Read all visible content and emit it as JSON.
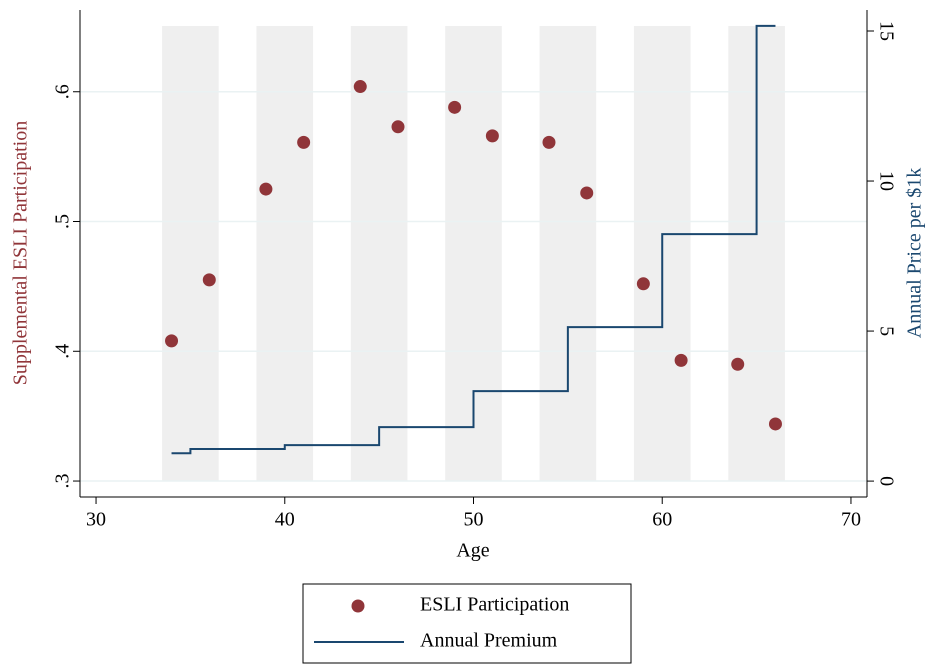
{
  "chart_data": {
    "type": "combo",
    "xlabel": "Age",
    "ylabel": "Supplemental ESLI Participation",
    "y2label": "Annual Price per $1k",
    "xlim": [
      29.15,
      70.85
    ],
    "xticks": [
      30,
      40,
      50,
      60,
      70
    ],
    "ylim": [
      0.2877,
      0.663
    ],
    "yticks": [
      {
        "value": 0.3,
        "label": ".3"
      },
      {
        "value": 0.4,
        "label": ".4"
      },
      {
        "value": 0.5,
        "label": ".5"
      },
      {
        "value": 0.6,
        "label": ".6"
      }
    ],
    "y2lim": [
      -0.53,
      15.7
    ],
    "y2ticks": [
      0,
      5,
      10,
      15
    ],
    "grid": true,
    "shaded_bands": [
      [
        33.5,
        36.5
      ],
      [
        38.5,
        41.5
      ],
      [
        43.5,
        46.5
      ],
      [
        48.5,
        51.5
      ],
      [
        53.5,
        56.5
      ],
      [
        58.5,
        61.5
      ],
      [
        63.5,
        66.5
      ]
    ],
    "band_color": "#efefef",
    "legend": "bottom",
    "series": [
      {
        "name": "ESLI Participation",
        "type": "scatter",
        "color": "#903539",
        "x": [
          34,
          36,
          39,
          41,
          44,
          46,
          49,
          51,
          54,
          56,
          59,
          61,
          64,
          66
        ],
        "values": [
          0.408,
          0.455,
          0.525,
          0.561,
          0.604,
          0.573,
          0.588,
          0.566,
          0.561,
          0.522,
          0.452,
          0.393,
          0.39,
          0.344
        ]
      },
      {
        "name": "Annual Premium",
        "type": "step",
        "axis": "y2",
        "color": "#1a476f",
        "x": [
          34,
          35,
          40,
          45,
          50,
          55,
          60,
          65,
          66
        ],
        "values": [
          0.93,
          1.07,
          1.2,
          1.8,
          3.0,
          5.13,
          8.23,
          15.17,
          15.17
        ]
      }
    ]
  }
}
